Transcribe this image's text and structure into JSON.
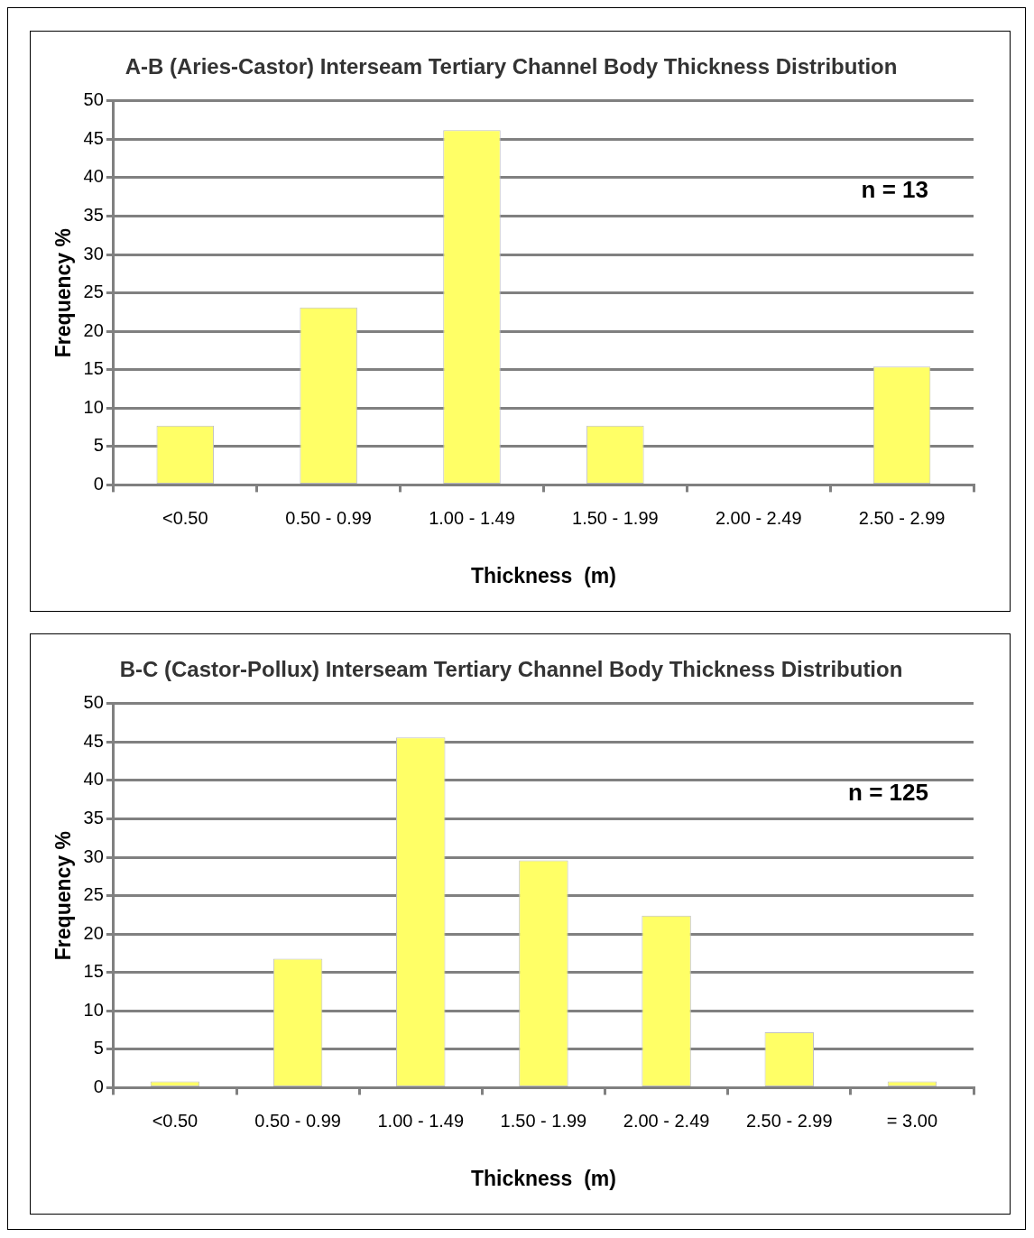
{
  "chart_data": [
    {
      "type": "bar",
      "title": "A-B (Aries-Castor) Interseam Tertiary Channel Body Thickness Distribution",
      "xlabel": "Thickness  (m)",
      "ylabel": "Frequency %",
      "categories": [
        "<0.50",
        "0.50 - 0.99",
        "1.00 - 1.49",
        "1.50 - 1.99",
        "2.00 - 2.49",
        "2.50 - 2.99"
      ],
      "values": [
        7.7,
        23.1,
        46.2,
        7.7,
        0,
        15.4
      ],
      "color": "#ffff66",
      "ylim": [
        0,
        50
      ],
      "yticks": [
        0,
        5,
        10,
        15,
        20,
        25,
        30,
        35,
        40,
        45,
        50
      ],
      "grid": "y",
      "legend": false,
      "annotations": [
        "n = 13"
      ]
    },
    {
      "type": "bar",
      "title": "B-C (Castor-Pollux) Interseam Tertiary Channel Body Thickness Distribution",
      "xlabel": "Thickness  (m)",
      "ylabel": "Frequency %",
      "categories": [
        "<0.50",
        "0.50 - 0.99",
        "1.00 - 1.49",
        "1.50 - 1.99",
        "2.00 - 2.49",
        "2.50 - 2.99",
        "= 3.00"
      ],
      "values": [
        0.8,
        16.8,
        45.6,
        29.6,
        22.4,
        7.2,
        0.8
      ],
      "color": "#ffff66",
      "ylim": [
        0,
        50
      ],
      "yticks": [
        0,
        5,
        10,
        15,
        20,
        25,
        30,
        35,
        40,
        45,
        50
      ],
      "grid": "y",
      "legend": false,
      "annotations": [
        "n = 125"
      ]
    }
  ]
}
